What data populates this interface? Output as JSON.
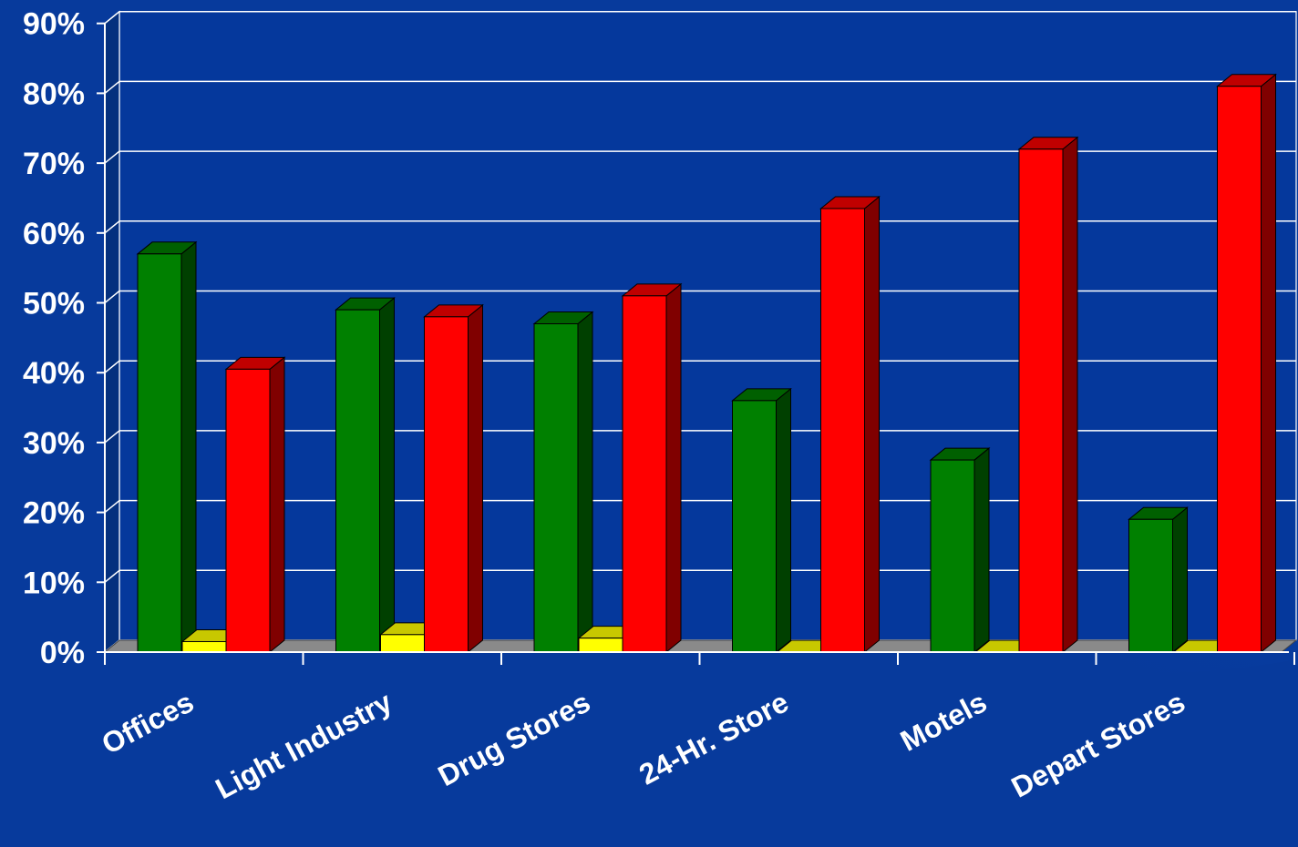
{
  "chart_data": {
    "type": "bar",
    "title": "",
    "xlabel": "",
    "ylabel": "",
    "ylim": [
      0,
      90
    ],
    "y_ticks": [
      0,
      10,
      20,
      30,
      40,
      50,
      60,
      70,
      80,
      90
    ],
    "y_tick_labels": [
      "0%",
      "10%",
      "20%",
      "30%",
      "40%",
      "50%",
      "60%",
      "70%",
      "80%",
      "90%"
    ],
    "grid": true,
    "legend": "none",
    "three_d": true,
    "categories": [
      "Offices",
      "Light Industry",
      "Drug Stores",
      "24-Hr. Store",
      "Motels",
      "Depart Stores"
    ],
    "series": [
      {
        "values": [
          57,
          49,
          47,
          36,
          27.5,
          19
        ]
      },
      {
        "values": [
          1.5,
          2.5,
          2,
          0,
          0,
          0
        ]
      },
      {
        "values": [
          40.5,
          48,
          51,
          63.5,
          72,
          81
        ]
      }
    ],
    "colors": {
      "background": "#073a9c",
      "background_dark": "#04307e",
      "plot_area": "#05389c",
      "grid": "#ffffff",
      "floor": "#8a8a8a",
      "series": [
        {
          "front": "#008000",
          "side": "#004000",
          "top": "#006000"
        },
        {
          "front": "#ffff00",
          "side": "#b8b800",
          "top": "#c8c800"
        },
        {
          "front": "#ff0000",
          "side": "#800000",
          "top": "#c00000"
        }
      ]
    }
  }
}
